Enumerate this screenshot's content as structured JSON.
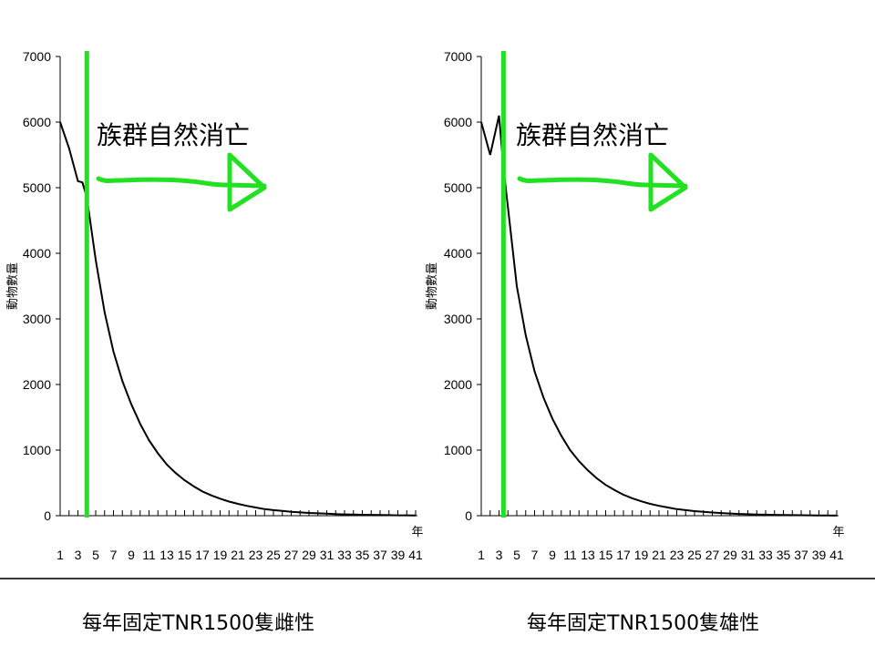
{
  "captions": {
    "left": "每年固定TNR1500隻雌性",
    "right": "每年固定TNR1500隻雄性"
  },
  "annotation": "族群自然消亡",
  "ylabel": "動物數量",
  "xunit": "年",
  "colors": {
    "marker": "#22e022",
    "line": "#000000"
  },
  "chart_data": [
    {
      "type": "line",
      "title": "",
      "ylabel": "動物數量",
      "xlabel": "年",
      "ylim": [
        0,
        7000
      ],
      "yticks": [
        0,
        1000,
        2000,
        3000,
        4000,
        5000,
        6000,
        7000
      ],
      "xticks": [
        1,
        3,
        5,
        7,
        9,
        11,
        13,
        15,
        17,
        19,
        21,
        23,
        25,
        27,
        29,
        31,
        33,
        35,
        37,
        39,
        41
      ],
      "xlim": [
        1,
        41
      ],
      "marker_x": 4,
      "series": [
        {
          "x": [
            1,
            2,
            3,
            3.5,
            4,
            5,
            6,
            7,
            8,
            9,
            10,
            11,
            12,
            13,
            14,
            15,
            16,
            17,
            18,
            19,
            20,
            21,
            22,
            23,
            24,
            25,
            26,
            27,
            28,
            29,
            30,
            31,
            32,
            33,
            34,
            35,
            36,
            37,
            38,
            39,
            40,
            41
          ],
          "values": [
            6000,
            5600,
            5100,
            5080,
            4850,
            3900,
            3100,
            2500,
            2050,
            1700,
            1400,
            1150,
            950,
            780,
            650,
            540,
            450,
            370,
            310,
            260,
            215,
            180,
            150,
            125,
            100,
            85,
            72,
            60,
            50,
            42,
            36,
            30,
            25,
            20,
            17,
            14,
            12,
            10,
            8,
            6,
            5,
            4
          ]
        }
      ]
    },
    {
      "type": "line",
      "title": "",
      "ylabel": "動物數量",
      "xlabel": "年",
      "ylim": [
        0,
        7000
      ],
      "yticks": [
        0,
        1000,
        2000,
        3000,
        4000,
        5000,
        6000,
        7000
      ],
      "xticks": [
        1,
        3,
        5,
        7,
        9,
        11,
        13,
        15,
        17,
        19,
        21,
        23,
        25,
        27,
        29,
        31,
        33,
        35,
        37,
        39,
        41
      ],
      "xlim": [
        1,
        41
      ],
      "marker_x": 3.5,
      "series": [
        {
          "x": [
            1,
            2,
            3,
            3.5,
            4,
            5,
            6,
            7,
            8,
            9,
            10,
            11,
            12,
            13,
            14,
            15,
            16,
            17,
            18,
            19,
            20,
            21,
            22,
            23,
            24,
            25,
            26,
            27,
            28,
            29,
            30,
            31,
            32,
            33,
            34,
            35,
            36,
            37,
            38,
            39,
            40,
            41
          ],
          "values": [
            6000,
            5500,
            6100,
            5300,
            4700,
            3500,
            2750,
            2200,
            1800,
            1480,
            1220,
            1000,
            830,
            690,
            570,
            470,
            390,
            320,
            265,
            220,
            180,
            150,
            125,
            100,
            85,
            70,
            58,
            48,
            40,
            33,
            27,
            22,
            18,
            15,
            12,
            10,
            8,
            7,
            5,
            4,
            3,
            2
          ]
        }
      ]
    }
  ]
}
